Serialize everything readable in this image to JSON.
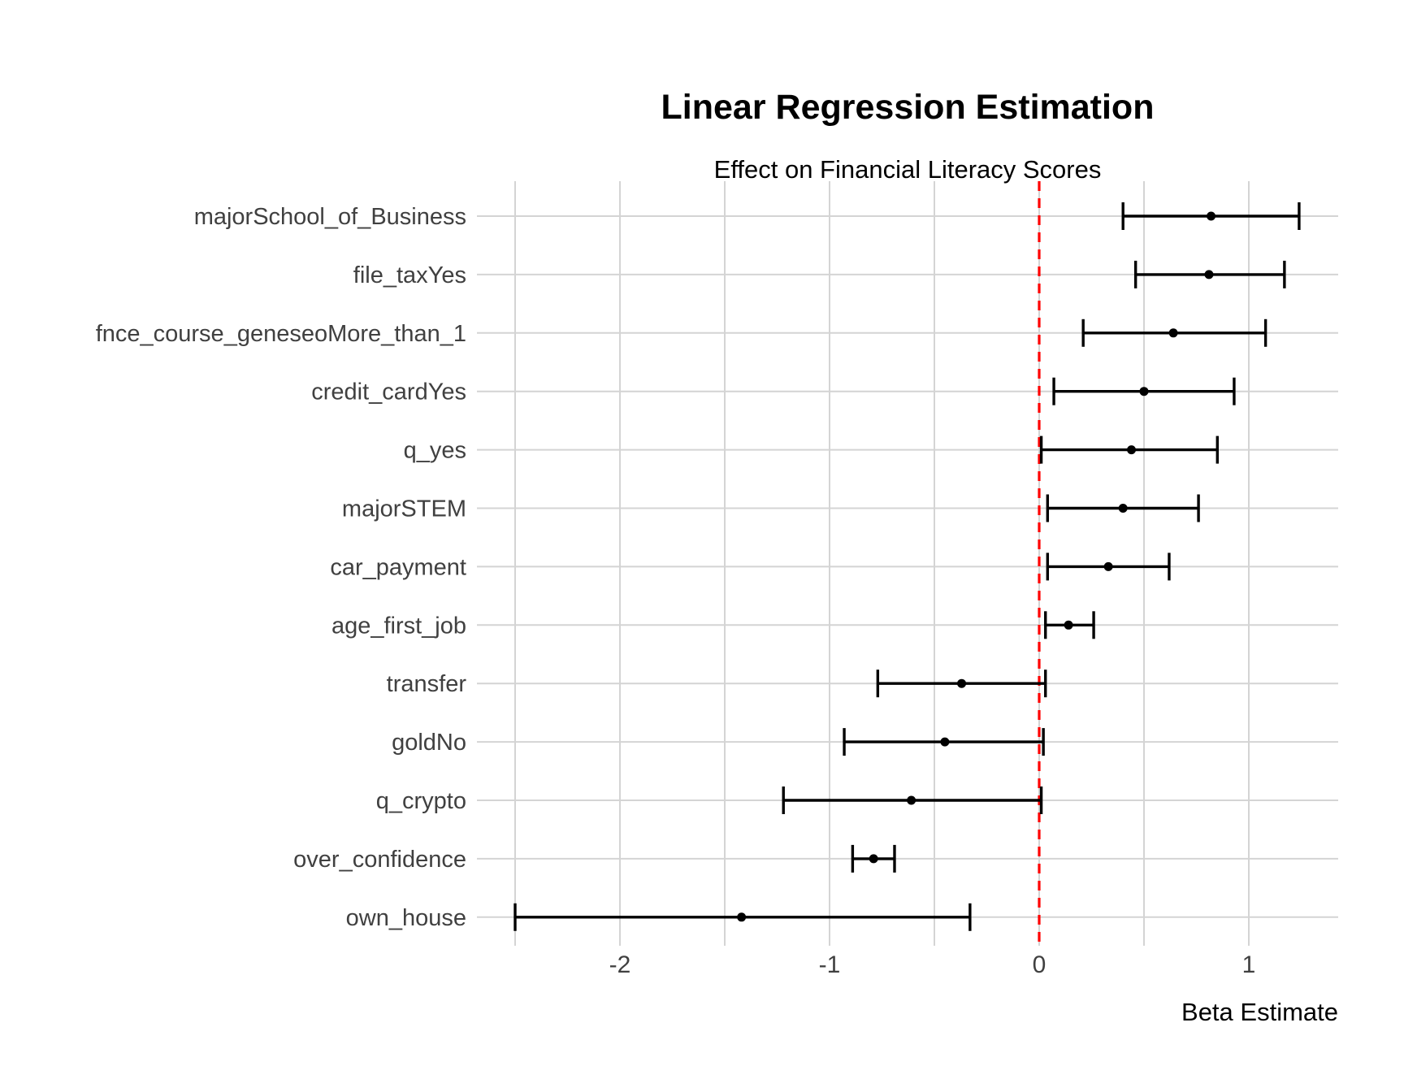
{
  "chart_data": {
    "type": "scatter",
    "subtype": "coefficient-forest-plot",
    "title": "Linear Regression Estimation",
    "subtitle": "Effect on Financial Literacy Scores",
    "xlabel": "Beta Estimate",
    "ylabel": "",
    "legend": "none",
    "grid": "on",
    "xlim": [
      -2.69,
      1.43
    ],
    "x_major_ticks": [
      {
        "label": "-2",
        "value": -2
      },
      {
        "label": "-1",
        "value": -1
      },
      {
        "label": "0",
        "value": 0
      },
      {
        "label": "1",
        "value": 1
      }
    ],
    "x_minor_gridlines": [
      -2.5,
      -1.5,
      -0.5,
      0.5
    ],
    "reference_line": {
      "x": 0,
      "linetype": "dashed",
      "color": "#FF0000"
    },
    "points": [
      {
        "term": "majorSchool_of_Business",
        "estimate": 0.82,
        "ci_low": 0.4,
        "ci_high": 1.24
      },
      {
        "term": "file_taxYes",
        "estimate": 0.81,
        "ci_low": 0.46,
        "ci_high": 1.17
      },
      {
        "term": "fnce_course_geneseoMore_than_1",
        "estimate": 0.64,
        "ci_low": 0.21,
        "ci_high": 1.08
      },
      {
        "term": "credit_cardYes",
        "estimate": 0.5,
        "ci_low": 0.07,
        "ci_high": 0.93
      },
      {
        "term": "q_yes",
        "estimate": 0.44,
        "ci_low": 0.01,
        "ci_high": 0.85
      },
      {
        "term": "majorSTEM",
        "estimate": 0.4,
        "ci_low": 0.04,
        "ci_high": 0.76
      },
      {
        "term": "car_payment",
        "estimate": 0.33,
        "ci_low": 0.04,
        "ci_high": 0.62
      },
      {
        "term": "age_first_job",
        "estimate": 0.14,
        "ci_low": 0.03,
        "ci_high": 0.26
      },
      {
        "term": "transfer",
        "estimate": -0.37,
        "ci_low": -0.77,
        "ci_high": 0.03
      },
      {
        "term": "goldNo",
        "estimate": -0.45,
        "ci_low": -0.93,
        "ci_high": 0.02
      },
      {
        "term": "q_crypto",
        "estimate": -0.61,
        "ci_low": -1.22,
        "ci_high": 0.01
      },
      {
        "term": "over_confidence",
        "estimate": -0.79,
        "ci_low": -0.89,
        "ci_high": -0.69
      },
      {
        "term": "own_house",
        "estimate": -1.42,
        "ci_low": -2.5,
        "ci_high": -0.33
      }
    ]
  },
  "style": {
    "background": "#FFFFFF",
    "grid_color": "#D4D4D4",
    "axis_text_color": "#404040",
    "title_color": "#000000",
    "point_color": "#000000",
    "errorbar_color": "#000000",
    "reference_line_color": "#FF0000"
  }
}
